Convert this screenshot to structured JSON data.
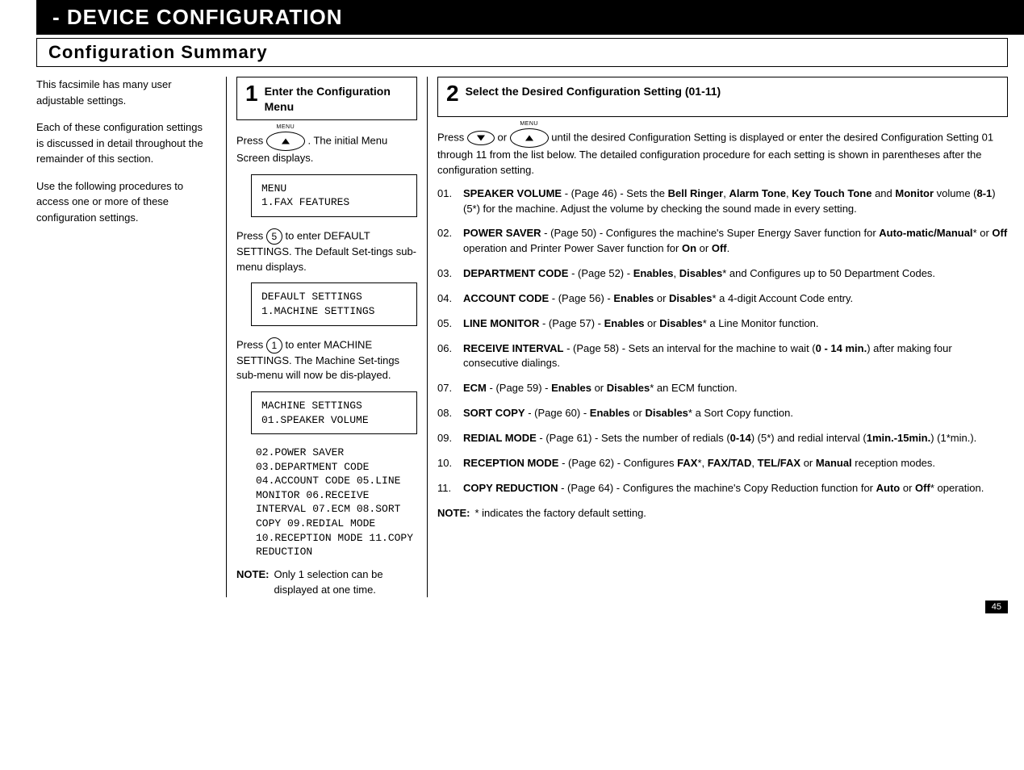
{
  "banner": "- DEVICE CONFIGURATION",
  "section_title": "Configuration  Summary",
  "page_number": "45",
  "intro": {
    "p1": "This facsimile has many user adjustable  settings.",
    "p2": "Each of these configuration settings is discussed in detail throughout the remainder of this  section.",
    "p3": "Use the following procedures to access one or more of these configuration  settings."
  },
  "step1": {
    "num": "1",
    "title": "Enter the Configuration Menu",
    "press_prefix": "Press ",
    "press_suffix": ". The initial Menu Screen  displays.",
    "lcd1": "MENU\n1.FAX FEATURES",
    "press5_prefix": "Press ",
    "press5_key": "5",
    "press5_suffix": " to enter DEFAULT SETTINGS. The Default Set-tings sub-menu  displays.",
    "lcd2": "DEFAULT SETTINGS\n1.MACHINE SETTINGS",
    "press1_prefix": "Press ",
    "press1_key": "1",
    "press1_suffix": " to enter MACHINE SETTINGS. The Machine Set-tings sub-menu will now be dis-played.",
    "lcd3": "MACHINE SETTINGS\n01.SPEAKER VOLUME",
    "scroll_list": "02.POWER SAVER\n03.DEPARTMENT CODE\n04.ACCOUNT CODE\n05.LINE MONITOR\n06.RECEIVE INTERVAL\n07.ECM\n08.SORT COPY\n09.REDIAL MODE\n10.RECEPTION MODE\n11.COPY REDUCTION",
    "note_label": "NOTE:",
    "note_text": "Only 1 selection can be displayed at one time."
  },
  "step2": {
    "num": "2",
    "title": "Select the Desired Configuration Setting (01-11)",
    "press_prefix": "Press ",
    "or_word": " or ",
    "press_suffix": " until the desired Configuration Setting is displayed or enter the desired Configuration Setting 01 through 11 from the list below. The detailed configuration procedure for each setting is shown in parentheses after the configuration setting.",
    "items": [
      {
        "num": "01.",
        "name": "SPEAKER VOLUME",
        "page": "(Page 46)",
        "rest_html": "Sets the <b>Bell Ringer</b>, <b>Alarm Tone</b>, <b>Key Touch Tone</b> and <b>Monitor</b> volume (<b>8-1</b>) (5*) for the machine.  Adjust the volume by checking the sound made in every  setting."
      },
      {
        "num": "02.",
        "name": "POWER SAVER",
        "page": "(Page 50)",
        "rest_html": "Configures the machine's Super Energy Saver function for <b>Auto-matic/Manual</b>* or <b>Off</b> operation and Printer Power Saver function for <b>On</b> or <b>Off</b>."
      },
      {
        "num": "03.",
        "name": "DEPARTMENT CODE",
        "page": "(Page 52)",
        "rest_html": "<b>Enables</b>, <b>Disables</b>* and Configures up to 50 Department Codes."
      },
      {
        "num": "04.",
        "name": "ACCOUNT CODE",
        "page": "(Page 56)",
        "rest_html": "<b>Enables</b> or <b>Disables</b>* a 4-digit Account Code entry."
      },
      {
        "num": "05.",
        "name": "LINE MONITOR",
        "page": "(Page 57)",
        "rest_html": "<b>Enables</b> or <b>Disables</b>* a Line Monitor function."
      },
      {
        "num": "06.",
        "name": "RECEIVE INTERVAL",
        "page": "(Page 58)",
        "rest_html": "Sets an interval for the machine to wait (<b>0 - 14 min.</b>) after making four consecutive dialings."
      },
      {
        "num": "07.",
        "name": "ECM",
        "page": "(Page 59)",
        "rest_html": "<b>Enables</b> or <b>Disables</b>* an ECM function."
      },
      {
        "num": "08.",
        "name": "SORT COPY",
        "page": "(Page 60)",
        "rest_html": "<b>Enables</b> or <b>Disables</b>* a Sort Copy function."
      },
      {
        "num": "09.",
        "name": "REDIAL MODE",
        "page": "(Page 61)",
        "rest_html": "Sets the number of redials (<b>0-14</b>) (5*) and redial interval (<b>1min.-15min.</b>) (1*min.)."
      },
      {
        "num": "10.",
        "name": "RECEPTION MODE",
        "page": "(Page 62)",
        "rest_html": "Configures <b>FAX</b>*, <b>FAX/TAD</b>, <b>TEL/FAX</b> or <b>Manual</b> reception modes."
      },
      {
        "num": "11.",
        "name": "COPY REDUCTION",
        "page": "(Page 64)",
        "rest_html": "Configures the machine's Copy Reduction function for <b>Auto</b> or <b>Off</b>* operation."
      }
    ],
    "footnote_label": "NOTE:",
    "footnote_text": "* indicates the factory default setting."
  }
}
